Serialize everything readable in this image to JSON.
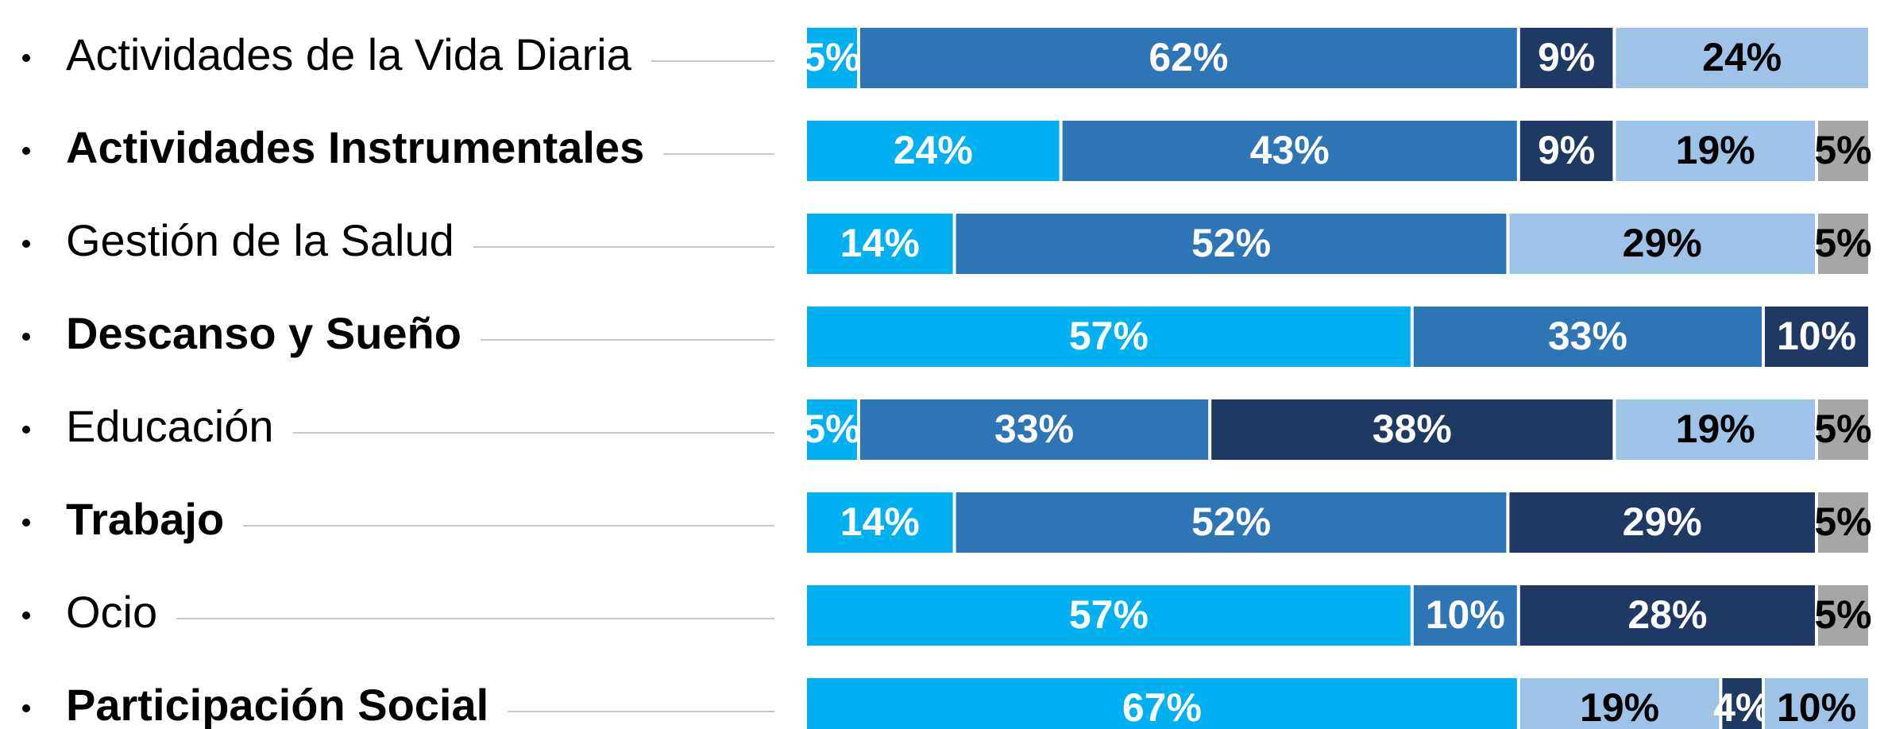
{
  "chart_data": {
    "type": "stacked-bar-horizontal",
    "categories": [
      "Actividades de la Vida Diaria",
      "Actividades Instrumentales",
      "Gestión de la Salud",
      "Descanso y Sueño",
      "Educación",
      "Trabajo",
      "Ocio",
      "Participación Social"
    ],
    "bold": [
      false,
      true,
      false,
      true,
      false,
      true,
      false,
      true
    ],
    "xlim": [
      0,
      100
    ],
    "rows": [
      {
        "values": [
          5,
          62,
          9,
          24
        ],
        "value_labels": [
          "5%",
          "62%",
          "9%",
          "24%"
        ],
        "colors": [
          "#00b0f0",
          "#2e75b6",
          "#203864",
          "#9dc3e6"
        ],
        "label_colors": [
          "#ffffff",
          "#ffffff",
          "#ffffff",
          "#000000"
        ]
      },
      {
        "values": [
          24,
          43,
          9,
          19,
          5
        ],
        "value_labels": [
          "24%",
          "43%",
          "9%",
          "19%",
          "5%"
        ],
        "colors": [
          "#00b0f0",
          "#2e75b6",
          "#203864",
          "#9dc3e6",
          "#a6a6a6"
        ],
        "label_colors": [
          "#ffffff",
          "#ffffff",
          "#ffffff",
          "#000000",
          "#000000"
        ]
      },
      {
        "values": [
          14,
          52,
          29,
          5
        ],
        "value_labels": [
          "14%",
          "52%",
          "29%",
          "5%"
        ],
        "colors": [
          "#00b0f0",
          "#2e75b6",
          "#9dc3e6",
          "#a6a6a6"
        ],
        "label_colors": [
          "#ffffff",
          "#ffffff",
          "#000000",
          "#000000"
        ]
      },
      {
        "values": [
          57,
          33,
          10
        ],
        "value_labels": [
          "57%",
          "33%",
          "10%"
        ],
        "colors": [
          "#00b0f0",
          "#2e75b6",
          "#203864"
        ],
        "label_colors": [
          "#ffffff",
          "#ffffff",
          "#ffffff"
        ]
      },
      {
        "values": [
          5,
          33,
          38,
          19,
          5
        ],
        "value_labels": [
          "5%",
          "33%",
          "38%",
          "19%",
          "5%"
        ],
        "colors": [
          "#00b0f0",
          "#2e75b6",
          "#203864",
          "#9dc3e6",
          "#a6a6a6"
        ],
        "label_colors": [
          "#ffffff",
          "#ffffff",
          "#ffffff",
          "#000000",
          "#000000"
        ]
      },
      {
        "values": [
          14,
          52,
          29,
          5
        ],
        "value_labels": [
          "14%",
          "52%",
          "29%",
          "5%"
        ],
        "colors": [
          "#00b0f0",
          "#2e75b6",
          "#203864",
          "#a6a6a6"
        ],
        "label_colors": [
          "#ffffff",
          "#ffffff",
          "#ffffff",
          "#000000"
        ]
      },
      {
        "values": [
          57,
          10,
          28,
          5
        ],
        "value_labels": [
          "57%",
          "10%",
          "28%",
          "5%"
        ],
        "colors": [
          "#00b0f0",
          "#2e75b6",
          "#203864",
          "#a6a6a6"
        ],
        "label_colors": [
          "#ffffff",
          "#ffffff",
          "#ffffff",
          "#000000"
        ]
      },
      {
        "values": [
          67,
          19,
          4,
          10
        ],
        "value_labels": [
          "67%",
          "19%",
          "4%",
          "10%"
        ],
        "colors": [
          "#00b0f0",
          "#9dc3e6",
          "#203864",
          "#9dc3e6"
        ],
        "label_colors": [
          "#ffffff",
          "#000000",
          "#ffffff",
          "#000000"
        ]
      }
    ]
  }
}
